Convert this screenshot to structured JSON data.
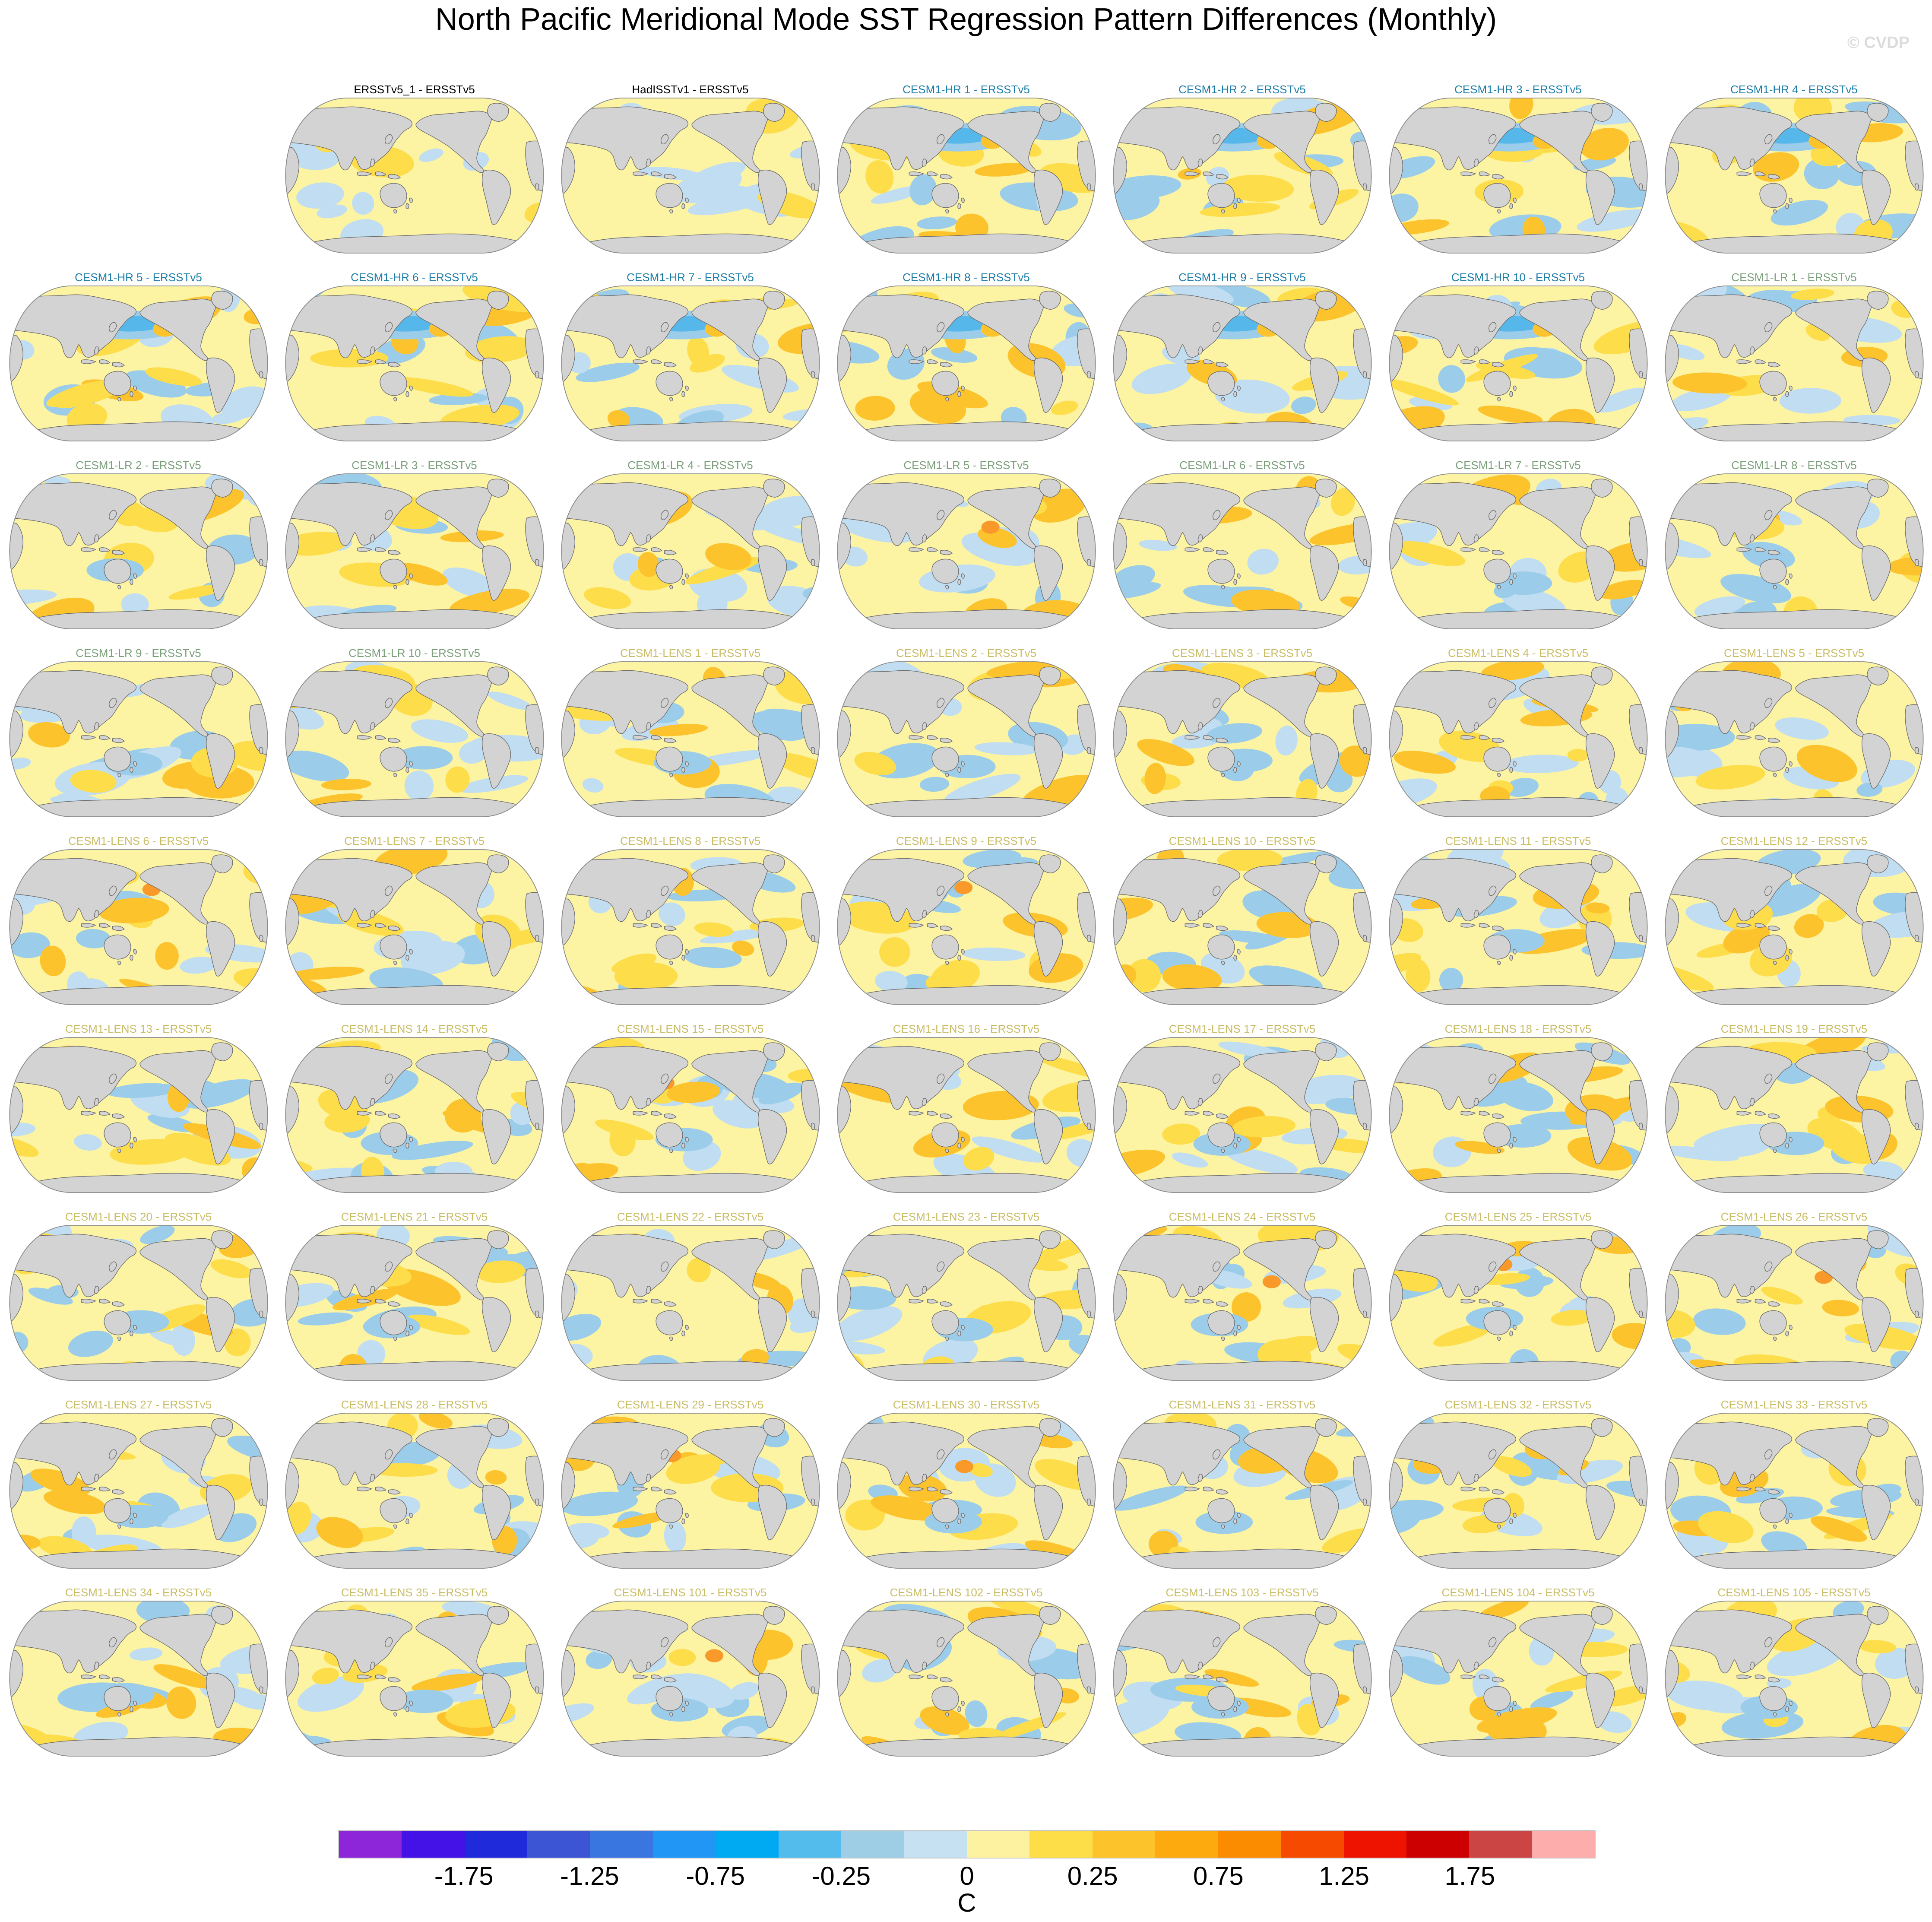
{
  "chart_data": {
    "type": "heatmap",
    "subtype": "small-multiples-global-sst-difference-maps",
    "title": "North Pacific Meridional Mode SST Regression Pattern Differences (Monthly)",
    "layout": {
      "columns": 7,
      "rows": 9,
      "leading_empty_cells": 1,
      "legend_position": "bottom"
    },
    "colorbar": {
      "unit": "C",
      "tick_labels": [
        "-1.75",
        "-1.25",
        "-0.75",
        "-0.25",
        "0",
        "0.25",
        "0.75",
        "1.25",
        "1.75"
      ],
      "tick_positions_pct": [
        10,
        20,
        30,
        40,
        50,
        60,
        70,
        80,
        90
      ],
      "segment_colors": [
        "#8d26d8",
        "#4411e6",
        "#1f2bdb",
        "#3b55d4",
        "#3a76e0",
        "#2196f5",
        "#00aaf2",
        "#54bcec",
        "#9ecde6",
        "#c6e1f2",
        "#fdf2a0",
        "#fede48",
        "#fdc32b",
        "#fdaa0e",
        "#fb8c00",
        "#f64a00",
        "#ee1300",
        "#cc0000",
        "#cc4545",
        "#feadad"
      ]
    },
    "panels": [
      {
        "label": "ERSSTv5_1 - ERSSTv5",
        "group": "obs"
      },
      {
        "label": "HadISSTv1 - ERSSTv5",
        "group": "obs"
      },
      {
        "label": "CESM1-HR 1 - ERSSTv5",
        "group": "hr"
      },
      {
        "label": "CESM1-HR 2 - ERSSTv5",
        "group": "hr"
      },
      {
        "label": "CESM1-HR 3 - ERSSTv5",
        "group": "hr"
      },
      {
        "label": "CESM1-HR 4 - ERSSTv5",
        "group": "hr"
      },
      {
        "label": "CESM1-HR 5 - ERSSTv5",
        "group": "hr"
      },
      {
        "label": "CESM1-HR 6 - ERSSTv5",
        "group": "hr"
      },
      {
        "label": "CESM1-HR 7 - ERSSTv5",
        "group": "hr"
      },
      {
        "label": "CESM1-HR 8 - ERSSTv5",
        "group": "hr"
      },
      {
        "label": "CESM1-HR 9 - ERSSTv5",
        "group": "hr"
      },
      {
        "label": "CESM1-HR 10 - ERSSTv5",
        "group": "hr"
      },
      {
        "label": "CESM1-LR 1 - ERSSTv5",
        "group": "lr"
      },
      {
        "label": "CESM1-LR 2 - ERSSTv5",
        "group": "lr"
      },
      {
        "label": "CESM1-LR 3 - ERSSTv5",
        "group": "lr"
      },
      {
        "label": "CESM1-LR 4 - ERSSTv5",
        "group": "lr"
      },
      {
        "label": "CESM1-LR 5 - ERSSTv5",
        "group": "lr"
      },
      {
        "label": "CESM1-LR 6 - ERSSTv5",
        "group": "lr"
      },
      {
        "label": "CESM1-LR 7 - ERSSTv5",
        "group": "lr"
      },
      {
        "label": "CESM1-LR 8 - ERSSTv5",
        "group": "lr"
      },
      {
        "label": "CESM1-LR 9 - ERSSTv5",
        "group": "lr"
      },
      {
        "label": "CESM1-LR 10 - ERSSTv5",
        "group": "lr"
      },
      {
        "label": "CESM1-LENS 1 - ERSSTv5",
        "group": "lens"
      },
      {
        "label": "CESM1-LENS 2 - ERSSTv5",
        "group": "lens"
      },
      {
        "label": "CESM1-LENS 3 - ERSSTv5",
        "group": "lens"
      },
      {
        "label": "CESM1-LENS 4 - ERSSTv5",
        "group": "lens"
      },
      {
        "label": "CESM1-LENS 5 - ERSSTv5",
        "group": "lens"
      },
      {
        "label": "CESM1-LENS 6 - ERSSTv5",
        "group": "lens"
      },
      {
        "label": "CESM1-LENS 7 - ERSSTv5",
        "group": "lens"
      },
      {
        "label": "CESM1-LENS 8 - ERSSTv5",
        "group": "lens"
      },
      {
        "label": "CESM1-LENS 9 - ERSSTv5",
        "group": "lens"
      },
      {
        "label": "CESM1-LENS 10 - ERSSTv5",
        "group": "lens"
      },
      {
        "label": "CESM1-LENS 11 - ERSSTv5",
        "group": "lens"
      },
      {
        "label": "CESM1-LENS 12 - ERSSTv5",
        "group": "lens"
      },
      {
        "label": "CESM1-LENS 13 - ERSSTv5",
        "group": "lens"
      },
      {
        "label": "CESM1-LENS 14 - ERSSTv5",
        "group": "lens"
      },
      {
        "label": "CESM1-LENS 15 - ERSSTv5",
        "group": "lens"
      },
      {
        "label": "CESM1-LENS 16 - ERSSTv5",
        "group": "lens"
      },
      {
        "label": "CESM1-LENS 17 - ERSSTv5",
        "group": "lens"
      },
      {
        "label": "CESM1-LENS 18 - ERSSTv5",
        "group": "lens"
      },
      {
        "label": "CESM1-LENS 19 - ERSSTv5",
        "group": "lens"
      },
      {
        "label": "CESM1-LENS 20 - ERSSTv5",
        "group": "lens"
      },
      {
        "label": "CESM1-LENS 21 - ERSSTv5",
        "group": "lens"
      },
      {
        "label": "CESM1-LENS 22 - ERSSTv5",
        "group": "lens"
      },
      {
        "label": "CESM1-LENS 23 - ERSSTv5",
        "group": "lens"
      },
      {
        "label": "CESM1-LENS 24 - ERSSTv5",
        "group": "lens"
      },
      {
        "label": "CESM1-LENS 25 - ERSSTv5",
        "group": "lens"
      },
      {
        "label": "CESM1-LENS 26 - ERSSTv5",
        "group": "lens"
      },
      {
        "label": "CESM1-LENS 27 - ERSSTv5",
        "group": "lens"
      },
      {
        "label": "CESM1-LENS 28 - ERSSTv5",
        "group": "lens"
      },
      {
        "label": "CESM1-LENS 29 - ERSSTv5",
        "group": "lens"
      },
      {
        "label": "CESM1-LENS 30 - ERSSTv5",
        "group": "lens"
      },
      {
        "label": "CESM1-LENS 31 - ERSSTv5",
        "group": "lens"
      },
      {
        "label": "CESM1-LENS 32 - ERSSTv5",
        "group": "lens"
      },
      {
        "label": "CESM1-LENS 33 - ERSSTv5",
        "group": "lens"
      },
      {
        "label": "CESM1-LENS 34 - ERSSTv5",
        "group": "lens"
      },
      {
        "label": "CESM1-LENS 35 - ERSSTv5",
        "group": "lens"
      },
      {
        "label": "CESM1-LENS 101 - ERSSTv5",
        "group": "lens"
      },
      {
        "label": "CESM1-LENS 102 - ERSSTv5",
        "group": "lens"
      },
      {
        "label": "CESM1-LENS 103 - ERSSTv5",
        "group": "lens"
      },
      {
        "label": "CESM1-LENS 104 - ERSSTv5",
        "group": "lens"
      },
      {
        "label": "CESM1-LENS 105 - ERSSTv5",
        "group": "lens"
      }
    ]
  },
  "watermark": "© CVDP",
  "groups": {
    "obs": {
      "title_color": "#000000"
    },
    "hr": {
      "title_color": "#1b7da8"
    },
    "lr": {
      "title_color": "#7ca07c"
    },
    "lens": {
      "title_color": "#c9bd66"
    }
  },
  "palette": {
    "ocean_base": "#fcf3a3",
    "pale_blue": "#c0ddf2",
    "medium_blue": "#9bcdea",
    "deep_blue": "#55b7ea",
    "yellow": "#fedd4a",
    "gold": "#fcc32d",
    "orange": "#f9992a",
    "land": "#d3d3d3",
    "coast": "#6a6a6a",
    "map_edge": "#8a8a8a"
  }
}
